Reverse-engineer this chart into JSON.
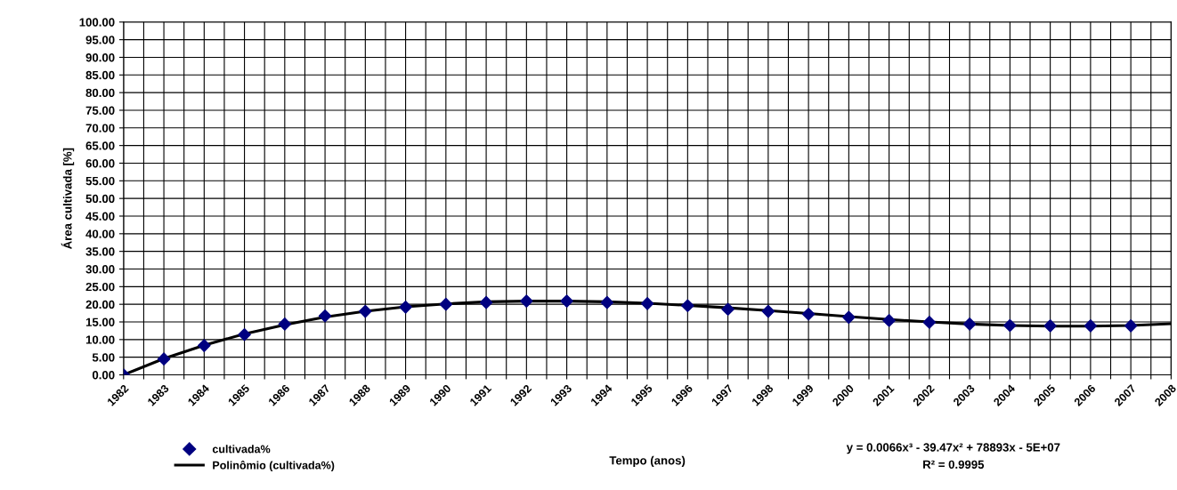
{
  "chart_data": {
    "type": "scatter",
    "xlabel": "Tempo (anos)",
    "ylabel": "Área cultivada [%]",
    "series": [
      {
        "name": "cultivada%",
        "color": "#000080",
        "marker": "diamond",
        "x": [
          1982,
          1983,
          1984,
          1985,
          1986,
          1987,
          1988,
          1989,
          1990,
          1991,
          1992,
          1993,
          1994,
          1995,
          1996,
          1997,
          1998,
          1999,
          2000,
          2001,
          2002,
          2003,
          2004,
          2005,
          2006,
          2007
        ],
        "values": [
          0,
          4.5,
          8.3,
          11.4,
          14.4,
          16.7,
          18.0,
          19.2,
          20.0,
          20.5,
          20.9,
          20.9,
          20.5,
          20.2,
          19.6,
          18.6,
          18.0,
          17.2,
          16.3,
          15.4,
          14.9,
          14.4,
          14.0,
          13.9,
          13.9,
          13.9
        ]
      },
      {
        "name": "Polinômio (cultivada%)",
        "type": "line",
        "color": "#000000",
        "line_style": "solid",
        "x": [
          1982,
          1983,
          1984,
          1985,
          1986,
          1987,
          1988,
          1989,
          1990,
          1991,
          1992,
          1993,
          1994,
          1995,
          1996,
          1997,
          1998,
          1999,
          2000,
          2001,
          2002,
          2003,
          2004,
          2005,
          2006,
          2007,
          2008
        ],
        "values": [
          0,
          4.6,
          8.4,
          11.6,
          14.2,
          16.4,
          18.0,
          19.3,
          20.1,
          20.7,
          20.9,
          20.9,
          20.7,
          20.3,
          19.7,
          19.0,
          18.2,
          17.4,
          16.5,
          15.7,
          15.0,
          14.4,
          14.0,
          13.8,
          13.8,
          14.0,
          14.5
        ]
      }
    ],
    "xlim": [
      1982,
      2008
    ],
    "xticks": [
      1982,
      {
        "value": 1982.5,
        "label": null
      },
      1983,
      {
        "value": 1983.5,
        "label": null
      },
      1984,
      {
        "value": 1984.5,
        "label": null
      },
      1985,
      {
        "value": 1985.5,
        "label": null
      },
      1986,
      {
        "value": 1986.5,
        "label": null
      },
      1987,
      {
        "value": 1987.5,
        "label": null
      },
      1988,
      {
        "value": 1988.5,
        "label": null
      },
      1989,
      {
        "value": 1989.5,
        "label": null
      },
      1990,
      {
        "value": 1990.5,
        "label": null
      },
      1991,
      {
        "value": 1991.5,
        "label": null
      },
      1992,
      {
        "value": 1992.5,
        "label": null
      },
      1993,
      {
        "value": 1993.5,
        "label": null
      },
      1994,
      {
        "value": 1994.5,
        "label": null
      },
      1995,
      {
        "value": 1995.5,
        "label": null
      },
      1996,
      {
        "value": 1996.5,
        "label": null
      },
      1997,
      {
        "value": 1997.5,
        "label": null
      },
      1998,
      {
        "value": 1998.5,
        "label": null
      },
      1999,
      {
        "value": 1999.5,
        "label": null
      },
      2000,
      {
        "value": 2000.5,
        "label": null
      },
      2001,
      {
        "value": 2001.5,
        "label": null
      },
      2002,
      {
        "value": 2002.5,
        "label": null
      },
      2003,
      {
        "value": 2003.5,
        "label": null
      },
      2004,
      {
        "value": 2004.5,
        "label": null
      },
      2005,
      {
        "value": 2005.5,
        "label": null
      },
      2006,
      {
        "value": 2006.5,
        "label": null
      },
      2007,
      {
        "value": 2007.5,
        "label": null
      },
      2008
    ],
    "ylim": [
      0,
      100
    ],
    "yticks": [
      {
        "value": 0,
        "label": "0.00"
      },
      {
        "value": 5,
        "label": "5.00"
      },
      {
        "value": 10,
        "label": "10.00"
      },
      {
        "value": 15,
        "label": "15.00"
      },
      {
        "value": 20,
        "label": "20.00"
      },
      {
        "value": 25,
        "label": "25.00"
      },
      {
        "value": 30,
        "label": "30.00"
      },
      {
        "value": 35,
        "label": "35.00"
      },
      {
        "value": 40,
        "label": "40.00"
      },
      {
        "value": 45,
        "label": "45.00"
      },
      {
        "value": 50,
        "label": "50.00"
      },
      {
        "value": 55,
        "label": "55.00"
      },
      {
        "value": 60,
        "label": "60.00"
      },
      {
        "value": 65,
        "label": "65.00"
      },
      {
        "value": 70,
        "label": "70.00"
      },
      {
        "value": 75,
        "label": "75.00"
      },
      {
        "value": 80,
        "label": "80.00"
      },
      {
        "value": 85,
        "label": "85.00"
      },
      {
        "value": 90,
        "label": "90.00"
      },
      {
        "value": 95,
        "label": "95.00"
      },
      {
        "value": 100,
        "label": "100.00"
      }
    ],
    "grid": true,
    "legend": "bottom left",
    "annotations": [
      "y = 0.0066x³ - 39.47x² + 78893x - 5E+07",
      "R² = 0.9995"
    ]
  }
}
